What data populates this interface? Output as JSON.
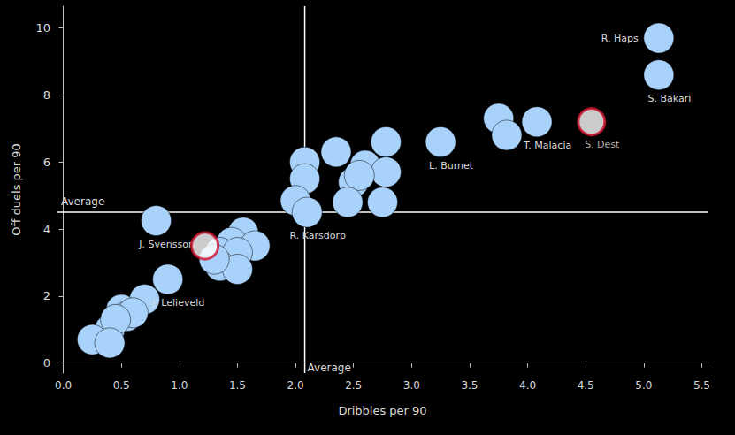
{
  "chart_data": {
    "type": "scatter",
    "x_label": "Dribbles per 90",
    "y_label": "Off duels per 90",
    "xlim": [
      -0.05,
      5.55
    ],
    "ylim": [
      -0.3,
      10.65
    ],
    "xticks": [
      {
        "value": 0,
        "label": "0.0"
      },
      0.5,
      {
        "value": 1,
        "label": "1.0"
      },
      1.5,
      {
        "value": 2,
        "label": "2.0"
      },
      2.5,
      {
        "value": 3,
        "label": "3.0"
      },
      3.5,
      {
        "value": 4,
        "label": "4.0"
      },
      4.5,
      {
        "value": 5,
        "label": "5.0"
      },
      5.5
    ],
    "yticks": [
      0,
      2,
      4,
      6,
      8,
      10
    ],
    "grid": false,
    "averages": {
      "label": "Average",
      "x": 2.08,
      "y": 4.5
    },
    "series": [
      {
        "marker": "circle",
        "color": "#a9d2fb",
        "x": [
          5.13,
          5.13,
          4.08,
          3.75,
          3.82,
          3.25,
          2.08,
          2.08,
          2.35,
          2.6,
          2.78,
          2.78,
          2.5,
          2.55,
          2.45,
          2.75,
          2.0,
          2.1,
          1.55,
          1.45,
          1.35,
          1.65,
          1.5,
          1.35,
          1.5,
          1.3,
          0.8,
          0.9,
          0.7,
          0.5,
          0.55,
          0.6,
          0.4,
          0.45,
          0.25,
          0.4
        ],
        "y": [
          9.7,
          8.6,
          7.2,
          7.3,
          6.8,
          6.6,
          6.0,
          5.5,
          6.3,
          5.9,
          6.6,
          5.7,
          5.4,
          5.6,
          4.8,
          4.8,
          4.85,
          4.5,
          3.9,
          3.6,
          3.3,
          3.5,
          3.3,
          2.9,
          2.8,
          3.1,
          4.25,
          2.5,
          1.9,
          1.6,
          1.4,
          1.5,
          1.0,
          1.3,
          0.7,
          0.6
        ],
        "labels": [
          "R. Haps",
          "S. Bakari",
          "T. Malacia",
          null,
          null,
          "L. Burnet",
          null,
          null,
          null,
          null,
          null,
          null,
          null,
          null,
          null,
          null,
          null,
          "R. Karsdorp",
          null,
          null,
          null,
          null,
          null,
          null,
          null,
          null,
          "J. Svensson",
          "J. Lelieveld",
          null,
          null,
          null,
          null,
          null,
          null,
          null,
          null
        ]
      },
      {
        "marker": "ajax",
        "color": "#d2122e",
        "x": [
          4.55,
          1.22
        ],
        "y": [
          7.2,
          3.5
        ],
        "labels": [
          "S. Dest",
          null
        ]
      }
    ]
  }
}
